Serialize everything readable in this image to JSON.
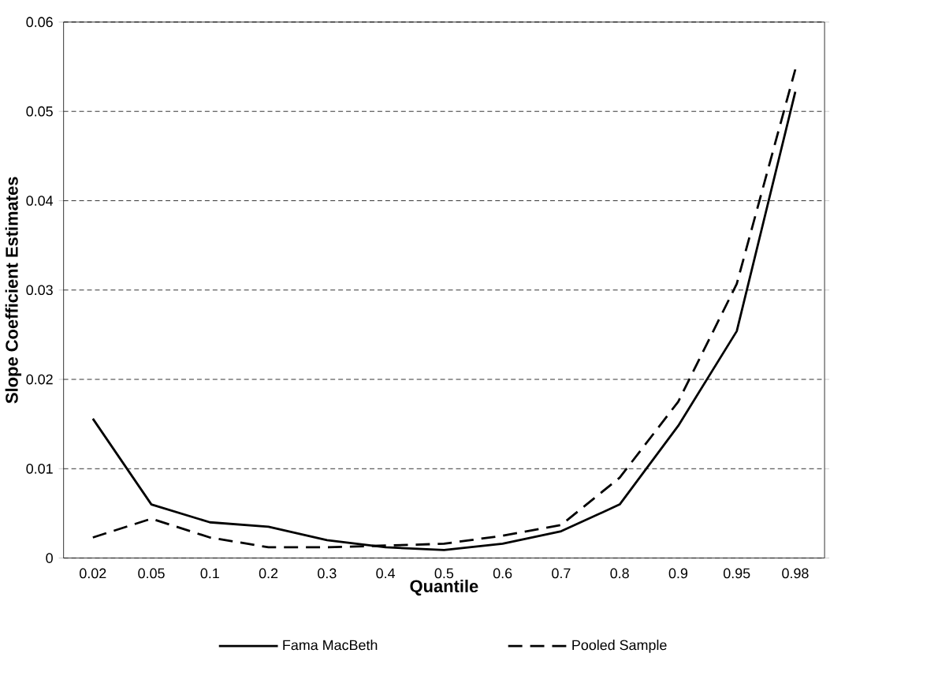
{
  "chart_data": {
    "type": "line",
    "xlabel": "Quantile",
    "ylabel": "Slope Coefficient Estimates",
    "categories": [
      "0.02",
      "0.05",
      "0.1",
      "0.2",
      "0.3",
      "0.4",
      "0.5",
      "0.6",
      "0.7",
      "0.8",
      "0.9",
      "0.95",
      "0.98"
    ],
    "series": [
      {
        "name": "Fama MacBeth",
        "color": "#000000",
        "line_style": "solid",
        "values": [
          0.0156,
          0.006,
          0.004,
          0.0035,
          0.002,
          0.0012,
          0.0009,
          0.0016,
          0.003,
          0.006,
          0.0148,
          0.0254,
          0.0522
        ]
      },
      {
        "name": "Pooled Sample",
        "color": "#000000",
        "line_style": "dashed",
        "values": [
          0.0023,
          0.0044,
          0.0023,
          0.0012,
          0.0012,
          0.0014,
          0.0016,
          0.0025,
          0.0037,
          0.009,
          0.0175,
          0.0307,
          0.0547
        ]
      }
    ],
    "ylim": [
      0,
      0.06
    ],
    "yticks": [
      0,
      0.01,
      0.02,
      0.03,
      0.04,
      0.05,
      0.06
    ],
    "grid": "y",
    "legend": "bottom",
    "marker": "none"
  }
}
